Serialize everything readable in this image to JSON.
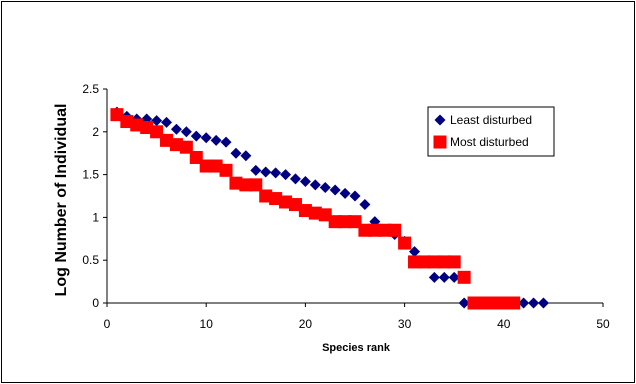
{
  "chart_data": {
    "type": "scatter",
    "title": "",
    "xlabel": "Species rank",
    "ylabel": "Log Number of Individual",
    "xlim": [
      0,
      50
    ],
    "ylim": [
      0,
      2.5
    ],
    "xticks": [
      "0",
      "10",
      "20",
      "30",
      "40",
      "50"
    ],
    "yticks": [
      "0",
      "0.5",
      "1",
      "1.5",
      "2",
      "2.5"
    ],
    "grid": false,
    "legend_position": "top-right",
    "series": [
      {
        "name": "Least disturbed",
        "marker": "diamond",
        "color": "#000080",
        "x": [
          1,
          2,
          3,
          4,
          5,
          6,
          7,
          8,
          9,
          10,
          11,
          12,
          13,
          14,
          15,
          16,
          17,
          18,
          19,
          20,
          21,
          22,
          23,
          24,
          25,
          26,
          27,
          28,
          29,
          30,
          31,
          32,
          33,
          34,
          35,
          36,
          37,
          38,
          39,
          40,
          41,
          42,
          43,
          44
        ],
        "y": [
          2.23,
          2.18,
          2.15,
          2.15,
          2.13,
          2.11,
          2.03,
          2.0,
          1.95,
          1.93,
          1.9,
          1.88,
          1.75,
          1.72,
          1.55,
          1.53,
          1.52,
          1.5,
          1.45,
          1.42,
          1.38,
          1.35,
          1.32,
          1.28,
          1.25,
          1.15,
          0.95,
          0.85,
          0.8,
          0.72,
          0.6,
          0.48,
          0.3,
          0.3,
          0.3,
          0.0,
          0.0,
          0.0,
          0.0,
          0.0,
          0.0,
          0.0,
          0.0,
          0.0
        ]
      },
      {
        "name": "Most disturbed",
        "marker": "square",
        "color": "#ff0000",
        "x": [
          1,
          2,
          3,
          4,
          5,
          6,
          7,
          8,
          9,
          10,
          11,
          12,
          13,
          14,
          15,
          16,
          17,
          18,
          19,
          20,
          21,
          22,
          23,
          24,
          25,
          26,
          27,
          28,
          29,
          30,
          31,
          32,
          33,
          34,
          35,
          36,
          37,
          38,
          39,
          40,
          41
        ],
        "y": [
          2.2,
          2.12,
          2.08,
          2.05,
          2.0,
          1.9,
          1.85,
          1.82,
          1.7,
          1.6,
          1.6,
          1.55,
          1.4,
          1.38,
          1.38,
          1.25,
          1.22,
          1.18,
          1.15,
          1.08,
          1.05,
          1.03,
          0.95,
          0.95,
          0.95,
          0.85,
          0.85,
          0.85,
          0.85,
          0.7,
          0.48,
          0.48,
          0.48,
          0.48,
          0.48,
          0.3,
          0.0,
          0.0,
          0.0,
          0.0,
          0.0
        ]
      }
    ]
  }
}
